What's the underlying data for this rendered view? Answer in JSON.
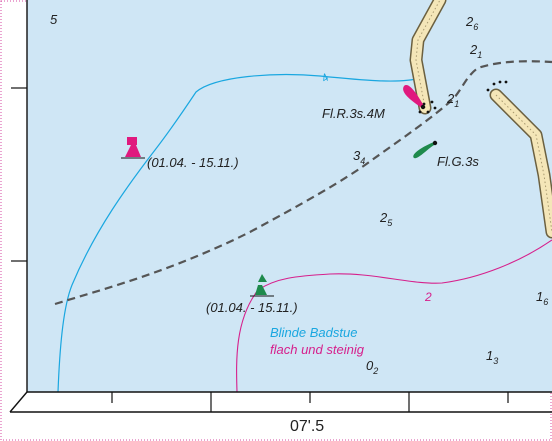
{
  "map": {
    "depths": [
      {
        "main": "5",
        "sub": ""
      },
      {
        "main": "2",
        "sub": "6"
      },
      {
        "main": "2",
        "sub": "1"
      },
      {
        "main": "2",
        "sub": "1"
      },
      {
        "main": "3",
        "sub": "4"
      },
      {
        "main": "2",
        "sub": "5"
      },
      {
        "main": "1",
        "sub": "6"
      },
      {
        "main": "1",
        "sub": "3"
      },
      {
        "main": "0",
        "sub": "2"
      }
    ],
    "contour_labels": [
      "4",
      "2"
    ],
    "lights": {
      "red": "Fl.R.3s.4M",
      "green": "Fl.G.3s"
    },
    "seasonal_notes": {
      "red_buoy": "(01.04. - 15.11.)",
      "green_buoy": "(01.04. - 15.11.)"
    },
    "hazard": {
      "name": "Blinde Badstue",
      "description": "flach und steinig"
    },
    "axis": {
      "longitude_label": "07'.5"
    },
    "colors": {
      "water": "#cfe6f5",
      "contour_blue": "#1aa7e0",
      "contour_magenta": "#d6208c",
      "fairway": "#555555",
      "red_mark": "#e0197e",
      "green_mark": "#1e8a4c",
      "breakwater": "#f4e6b8",
      "border_dots": "#d44aa0"
    }
  }
}
